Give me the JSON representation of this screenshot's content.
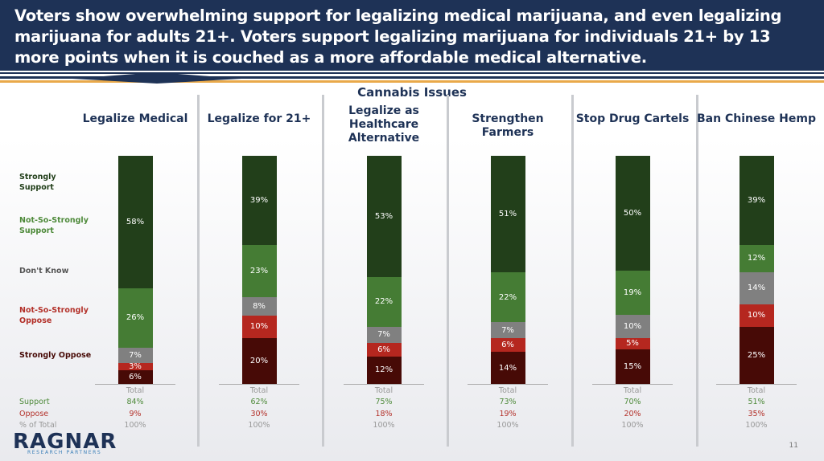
{
  "header": {
    "title": "Voters show overwhelming support for legalizing medical marijuana, and even legalizing marijuana for adults 21+. Voters support legalizing marijuana for individuals 21+ by 13 more points when it is couched as a more affordable medical alternative."
  },
  "colors": {
    "navy": "#1e3256",
    "gold": "#e9a94a",
    "strongly_support": "#223f1a",
    "nss_support": "#457c34",
    "dont_know": "#808080",
    "nss_oppose": "#b5271f",
    "strongly_oppose": "#470a06",
    "support_text": "#4e8a3a",
    "oppose_text": "#b3312a"
  },
  "chart_data": {
    "type": "bar",
    "stacked": true,
    "title": "Cannabis Issues",
    "categories": [
      "Legalize Medical",
      "Legalize for 21+",
      "Legalize as Healthcare Alternative",
      "Strengthen Farmers",
      "Stop Drug Cartels",
      "Ban Chinese Hemp"
    ],
    "series": [
      {
        "name": "Strongly Support",
        "values": [
          58,
          39,
          53,
          51,
          50,
          39
        ]
      },
      {
        "name": "Not-So-Strongly Support",
        "values": [
          26,
          23,
          22,
          22,
          19,
          12
        ]
      },
      {
        "name": "Don't Know",
        "values": [
          7,
          8,
          7,
          7,
          10,
          14
        ]
      },
      {
        "name": "Not-So-Strongly Oppose",
        "values": [
          3,
          10,
          6,
          6,
          5,
          10
        ]
      },
      {
        "name": "Strongly Oppose",
        "values": [
          6,
          20,
          12,
          14,
          15,
          25
        ]
      }
    ],
    "ylim": [
      0,
      100
    ],
    "legend": "left",
    "summary": {
      "column_label": "Total",
      "row_labels": [
        "Support",
        "Oppose",
        "% of Total"
      ],
      "support": [
        "84%",
        "62%",
        "75%",
        "73%",
        "70%",
        "51%"
      ],
      "oppose": [
        "9%",
        "30%",
        "18%",
        "19%",
        "20%",
        "35%"
      ],
      "total": [
        "100%",
        "100%",
        "100%",
        "100%",
        "100%",
        "100%"
      ]
    }
  },
  "logo": {
    "name": "RAGNAR",
    "tagline": "RESEARCH PARTNERS"
  },
  "page_number": "11"
}
